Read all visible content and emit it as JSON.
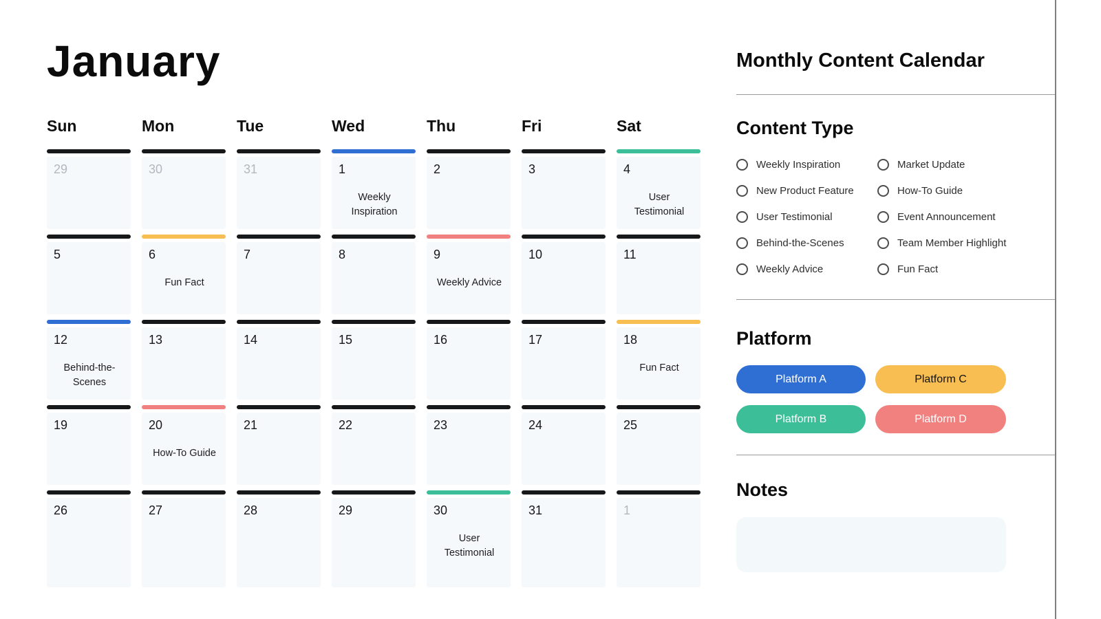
{
  "month": {
    "title": "January"
  },
  "panel": {
    "title": "Monthly Content Calendar"
  },
  "weekdays": [
    "Sun",
    "Mon",
    "Tue",
    "Wed",
    "Thu",
    "Fri",
    "Sat"
  ],
  "colors": {
    "black": "#17181a",
    "blue": "#2f6fd4",
    "teal": "#3cbe98",
    "yellow": "#f8be52",
    "red": "#f0817f",
    "muted_day": "#b2b8bf",
    "cell_bg": "#f6f9fc"
  },
  "calendar": {
    "days": [
      {
        "num": "29",
        "muted": true,
        "bar": "black",
        "event": ""
      },
      {
        "num": "30",
        "muted": true,
        "bar": "black",
        "event": ""
      },
      {
        "num": "31",
        "muted": true,
        "bar": "black",
        "event": ""
      },
      {
        "num": "1",
        "muted": false,
        "bar": "blue",
        "event": "Weekly Inspiration"
      },
      {
        "num": "2",
        "muted": false,
        "bar": "black",
        "event": ""
      },
      {
        "num": "3",
        "muted": false,
        "bar": "black",
        "event": ""
      },
      {
        "num": "4",
        "muted": false,
        "bar": "teal",
        "event": "User Testimonial"
      },
      {
        "num": "5",
        "muted": false,
        "bar": "black",
        "event": ""
      },
      {
        "num": "6",
        "muted": false,
        "bar": "yellow",
        "event": "Fun Fact"
      },
      {
        "num": "7",
        "muted": false,
        "bar": "black",
        "event": ""
      },
      {
        "num": "8",
        "muted": false,
        "bar": "black",
        "event": ""
      },
      {
        "num": "9",
        "muted": false,
        "bar": "red",
        "event": "Weekly Advice"
      },
      {
        "num": "10",
        "muted": false,
        "bar": "black",
        "event": ""
      },
      {
        "num": "11",
        "muted": false,
        "bar": "black",
        "event": ""
      },
      {
        "num": "12",
        "muted": false,
        "bar": "blue",
        "event": "Behind-the-Scenes"
      },
      {
        "num": "13",
        "muted": false,
        "bar": "black",
        "event": ""
      },
      {
        "num": "14",
        "muted": false,
        "bar": "black",
        "event": ""
      },
      {
        "num": "15",
        "muted": false,
        "bar": "black",
        "event": ""
      },
      {
        "num": "16",
        "muted": false,
        "bar": "black",
        "event": ""
      },
      {
        "num": "17",
        "muted": false,
        "bar": "black",
        "event": ""
      },
      {
        "num": "18",
        "muted": false,
        "bar": "yellow",
        "event": "Fun Fact"
      },
      {
        "num": "19",
        "muted": false,
        "bar": "black",
        "event": ""
      },
      {
        "num": "20",
        "muted": false,
        "bar": "red",
        "event": "How-To Guide"
      },
      {
        "num": "21",
        "muted": false,
        "bar": "black",
        "event": ""
      },
      {
        "num": "22",
        "muted": false,
        "bar": "black",
        "event": ""
      },
      {
        "num": "23",
        "muted": false,
        "bar": "black",
        "event": ""
      },
      {
        "num": "24",
        "muted": false,
        "bar": "black",
        "event": ""
      },
      {
        "num": "25",
        "muted": false,
        "bar": "black",
        "event": ""
      },
      {
        "num": "26",
        "muted": false,
        "bar": "black",
        "event": ""
      },
      {
        "num": "27",
        "muted": false,
        "bar": "black",
        "event": ""
      },
      {
        "num": "28",
        "muted": false,
        "bar": "black",
        "event": ""
      },
      {
        "num": "29",
        "muted": false,
        "bar": "black",
        "event": ""
      },
      {
        "num": "30",
        "muted": false,
        "bar": "teal",
        "event": "User Testimonial"
      },
      {
        "num": "31",
        "muted": false,
        "bar": "black",
        "event": ""
      },
      {
        "num": "1",
        "muted": true,
        "bar": "black",
        "event": ""
      }
    ]
  },
  "content_type": {
    "heading": "Content Type",
    "options": [
      "Weekly Inspiration",
      "Market Update",
      "New Product Feature",
      "How-To Guide",
      "User Testimonial",
      "Event Announcement",
      "Behind-the-Scenes",
      "Team Member Highlight",
      "Weekly Advice",
      "Fun Fact"
    ]
  },
  "platform": {
    "heading": "Platform",
    "buttons": [
      {
        "label": "Platform A",
        "bg": "#2f6fd4",
        "fg": "#ffffff"
      },
      {
        "label": "Platform C",
        "bg": "#f8be52",
        "fg": "#141414"
      },
      {
        "label": "Platform B",
        "bg": "#3cbe98",
        "fg": "#ffffff"
      },
      {
        "label": "Platform D",
        "bg": "#f0817f",
        "fg": "#ffffff"
      }
    ]
  },
  "notes": {
    "heading": "Notes",
    "value": ""
  }
}
